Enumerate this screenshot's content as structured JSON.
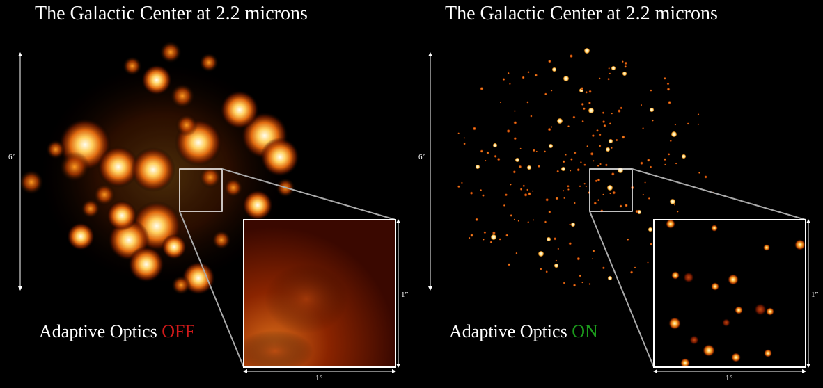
{
  "panels": [
    {
      "id": "ao-off",
      "title": "The Galactic Center at 2.2 microns",
      "caption_prefix": "Adaptive Optics",
      "caption_state": "OFF",
      "state_color": "#d11a1a",
      "field_scale_label": "6”",
      "inset_height_label": "1”",
      "inset_width_label": "1”"
    },
    {
      "id": "ao-on",
      "title": "The Galactic Center at 2.2 microns",
      "caption_prefix": "Adaptive Optics",
      "caption_state": "ON",
      "state_color": "#1c9b1c",
      "field_scale_label": "6”",
      "inset_height_label": "1”",
      "inset_width_label": "1”"
    }
  ],
  "colors": {
    "background": "#000000",
    "star_core": "#fffbe6",
    "star_mid": "#ffb020",
    "star_halo": "#c04000"
  }
}
